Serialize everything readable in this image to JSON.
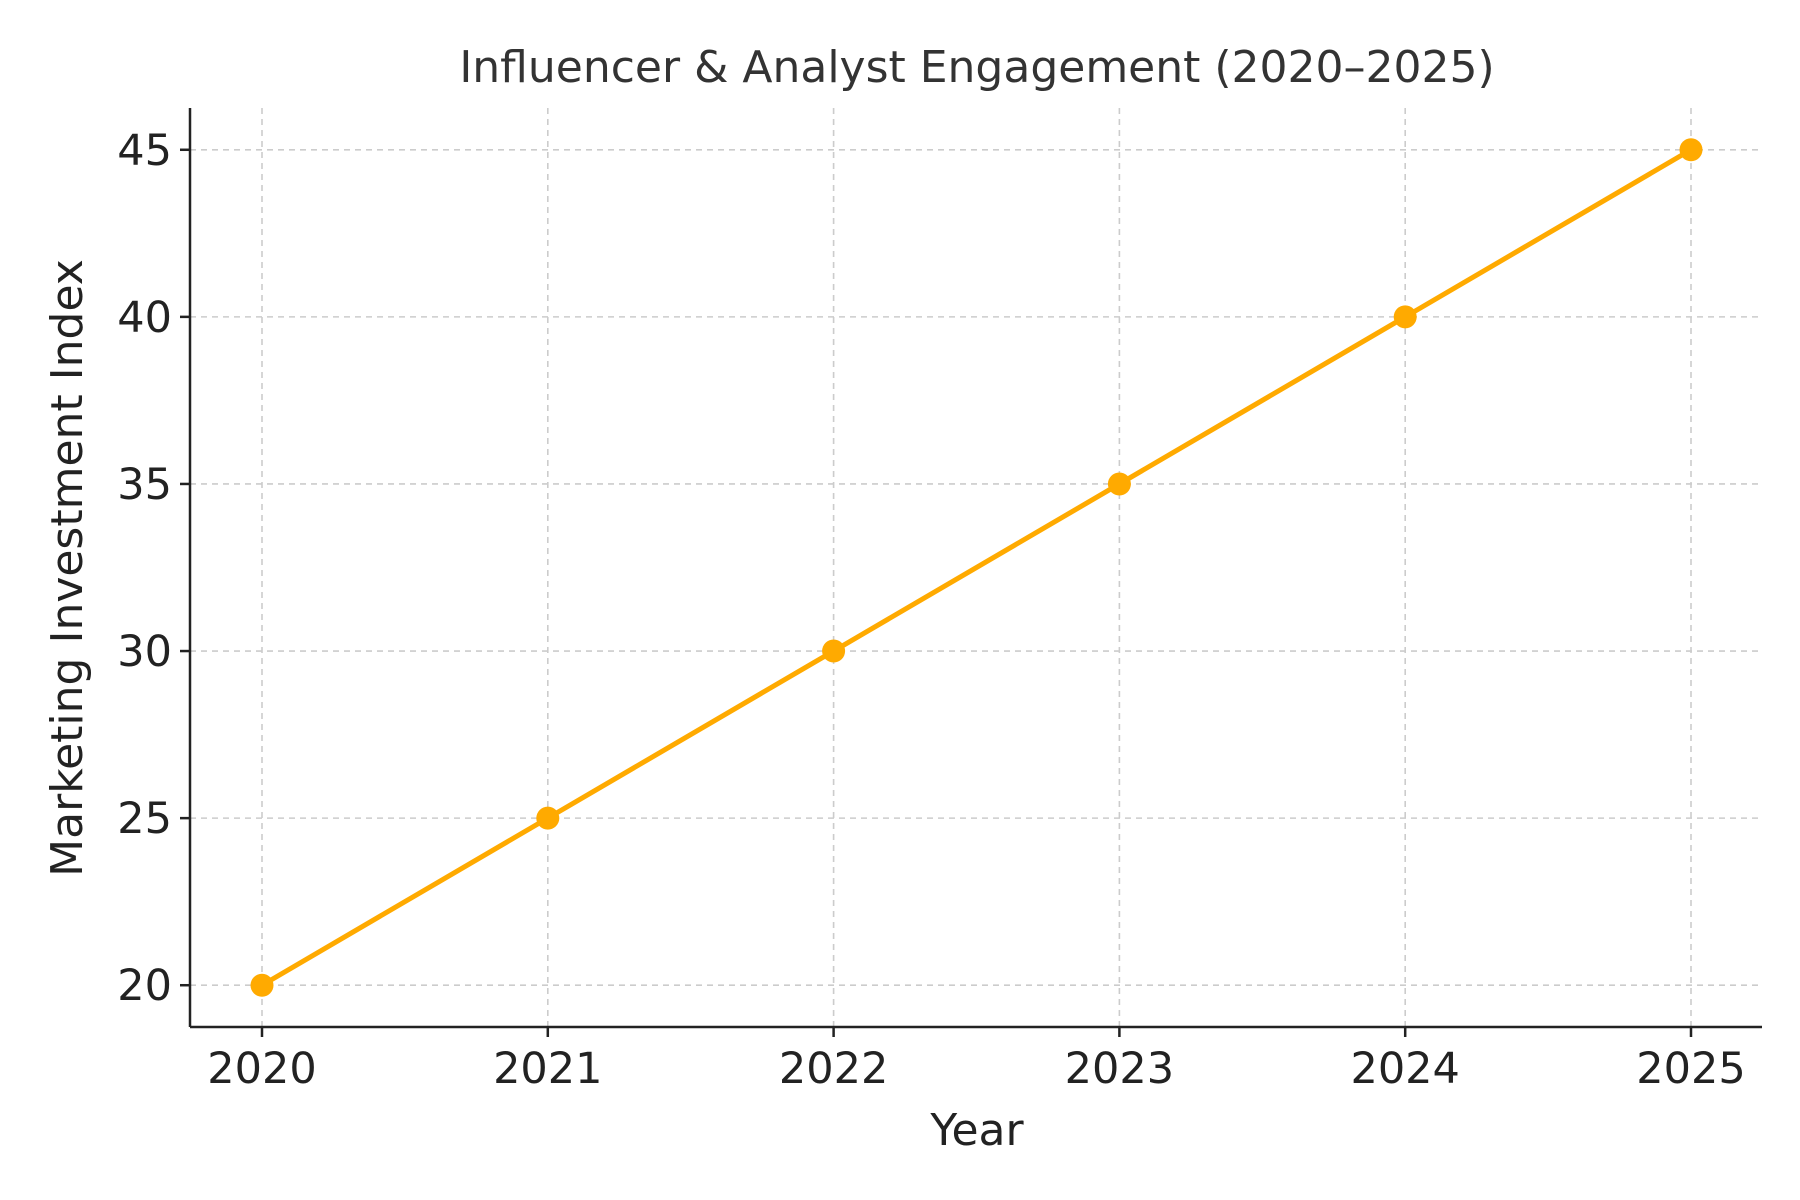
{
  "chart_data": {
    "type": "line",
    "title": "Influencer & Analyst Engagement (2020–2025)",
    "xlabel": "Year",
    "ylabel": "Marketing Investment Index",
    "x": [
      "2020",
      "2021",
      "2022",
      "2023",
      "2024",
      "2025"
    ],
    "series": [
      {
        "values": [
          20,
          25,
          30,
          35,
          40,
          45
        ],
        "color": "#FFAA00",
        "marker": "circle"
      }
    ],
    "yticks": [
      20,
      25,
      30,
      35,
      40,
      45
    ],
    "ylim": [
      18.75,
      46.25
    ],
    "grid": true,
    "legend": "none"
  }
}
